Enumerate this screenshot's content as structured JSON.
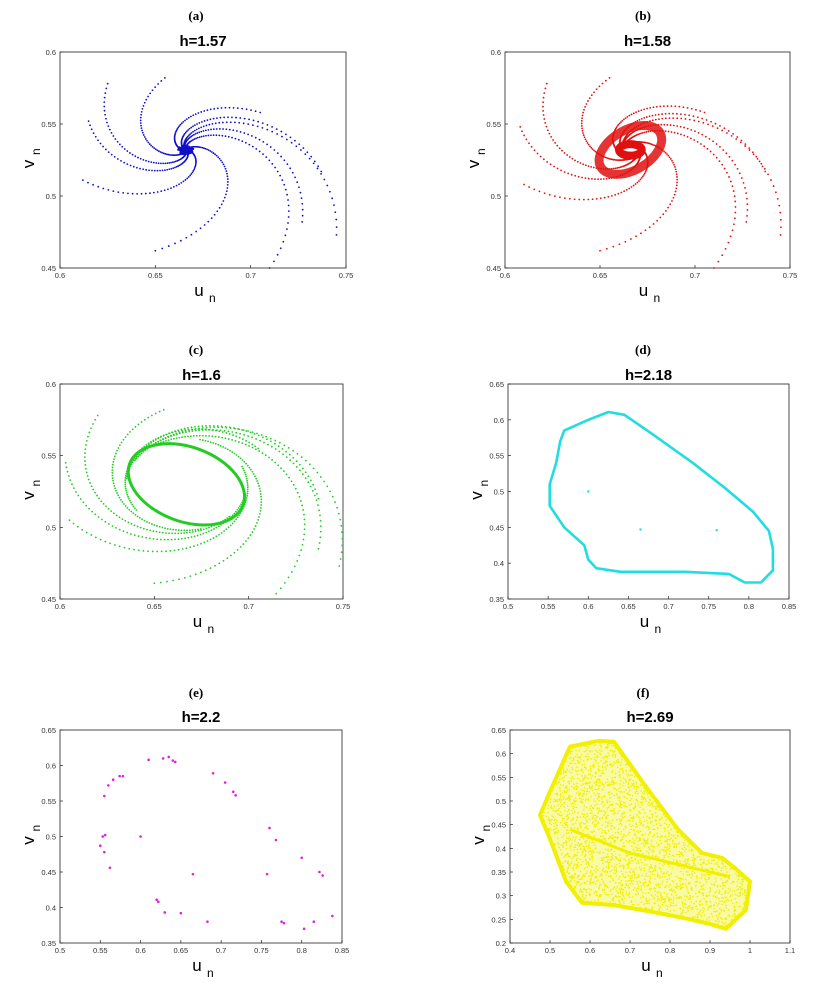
{
  "chart_data": [
    {
      "panel_label": "(a)",
      "title": "h=1.57",
      "type": "scatter",
      "color": "#1010c8",
      "xlim": [
        0.6,
        0.75
      ],
      "ylim": [
        0.45,
        0.6
      ],
      "xticks": [
        "0.6",
        "0.65",
        "0.7",
        "0.75"
      ],
      "yticks": [
        "0.45",
        "0.5",
        "0.55",
        "0.6"
      ],
      "xlabel": "u",
      "xlabel_sub": "n",
      "ylabel": "v",
      "ylabel_sub": "n",
      "pattern": "spiral-arms",
      "fixed_point": [
        0.666,
        0.532
      ],
      "arm_starts": [
        [
          0.625,
          0.578
        ],
        [
          0.655,
          0.582
        ],
        [
          0.705,
          0.558
        ],
        [
          0.737,
          0.517
        ],
        [
          0.745,
          0.473
        ],
        [
          0.71,
          0.45
        ],
        [
          0.65,
          0.462
        ],
        [
          0.612,
          0.511
        ],
        [
          0.615,
          0.552
        ],
        [
          0.727,
          0.482
        ]
      ]
    },
    {
      "panel_label": "(b)",
      "title": "h=1.58",
      "type": "scatter",
      "color": "#e01010",
      "xlim": [
        0.6,
        0.75
      ],
      "ylim": [
        0.45,
        0.6
      ],
      "xticks": [
        "0.6",
        "0.65",
        "0.7",
        "0.75"
      ],
      "yticks": [
        "0.45",
        "0.5",
        "0.55",
        "0.6"
      ],
      "xlabel": "u",
      "xlabel_sub": "n",
      "ylabel": "v",
      "ylabel_sub": "n",
      "pattern": "spiral-to-small-cycle",
      "fixed_point": [
        0.666,
        0.532
      ],
      "cycle_radii": [
        0.006,
        0.004
      ],
      "arm_starts": [
        [
          0.622,
          0.578
        ],
        [
          0.655,
          0.582
        ],
        [
          0.705,
          0.558
        ],
        [
          0.737,
          0.517
        ],
        [
          0.745,
          0.473
        ],
        [
          0.71,
          0.45
        ],
        [
          0.65,
          0.462
        ],
        [
          0.61,
          0.508
        ],
        [
          0.608,
          0.548
        ],
        [
          0.727,
          0.482
        ]
      ]
    },
    {
      "panel_label": "(c)",
      "title": "h=1.6",
      "type": "scatter",
      "color": "#22cc22",
      "xlim": [
        0.6,
        0.75
      ],
      "ylim": [
        0.45,
        0.6
      ],
      "xticks": [
        "0.6",
        "0.65",
        "0.7",
        "0.75"
      ],
      "yticks": [
        "0.45",
        "0.5",
        "0.55",
        "0.6"
      ],
      "xlabel": "u",
      "xlabel_sub": "n",
      "ylabel": "v",
      "ylabel_sub": "n",
      "pattern": "spiral-to-invariant-circle",
      "fixed_point": [
        0.667,
        0.53
      ],
      "cycle_radii": [
        0.032,
        0.026
      ],
      "cycle_tilt_deg": -20,
      "arm_starts": [
        [
          0.62,
          0.578
        ],
        [
          0.655,
          0.582
        ],
        [
          0.705,
          0.555
        ],
        [
          0.737,
          0.52
        ],
        [
          0.748,
          0.473
        ],
        [
          0.712,
          0.45
        ],
        [
          0.65,
          0.461
        ],
        [
          0.605,
          0.505
        ],
        [
          0.603,
          0.545
        ],
        [
          0.737,
          0.485
        ]
      ]
    },
    {
      "panel_label": "(d)",
      "title": "h=2.18",
      "type": "scatter",
      "color": "#22dde0",
      "xlim": [
        0.5,
        0.85
      ],
      "ylim": [
        0.35,
        0.65
      ],
      "xticks": [
        "0.5",
        "0.55",
        "0.6",
        "0.65",
        "0.7",
        "0.75",
        "0.8",
        "0.85"
      ],
      "yticks": [
        "0.35",
        "0.4",
        "0.45",
        "0.5",
        "0.55",
        "0.6",
        "0.65"
      ],
      "xlabel": "u",
      "xlabel_sub": "n",
      "ylabel": "v",
      "ylabel_sub": "n",
      "pattern": "closed-invariant-curve",
      "curve": [
        [
          0.57,
          0.585
        ],
        [
          0.6,
          0.6
        ],
        [
          0.625,
          0.611
        ],
        [
          0.645,
          0.607
        ],
        [
          0.68,
          0.58
        ],
        [
          0.73,
          0.54
        ],
        [
          0.77,
          0.505
        ],
        [
          0.805,
          0.472
        ],
        [
          0.825,
          0.445
        ],
        [
          0.83,
          0.42
        ],
        [
          0.83,
          0.39
        ],
        [
          0.815,
          0.373
        ],
        [
          0.795,
          0.373
        ],
        [
          0.775,
          0.385
        ],
        [
          0.72,
          0.388
        ],
        [
          0.64,
          0.388
        ],
        [
          0.61,
          0.393
        ],
        [
          0.6,
          0.405
        ],
        [
          0.595,
          0.425
        ],
        [
          0.57,
          0.45
        ],
        [
          0.552,
          0.48
        ],
        [
          0.552,
          0.51
        ],
        [
          0.56,
          0.54
        ],
        [
          0.565,
          0.57
        ]
      ],
      "stray_points": [
        [
          0.6,
          0.5
        ],
        [
          0.665,
          0.447
        ],
        [
          0.76,
          0.446
        ]
      ]
    },
    {
      "panel_label": "(e)",
      "title": "h=2.2",
      "type": "scatter",
      "color": "#dd22dd",
      "xlim": [
        0.5,
        0.85
      ],
      "ylim": [
        0.35,
        0.65
      ],
      "xticks": [
        "0.5",
        "0.55",
        "0.6",
        "0.65",
        "0.7",
        "0.75",
        "0.8",
        "0.85"
      ],
      "yticks": [
        "0.35",
        "0.4",
        "0.45",
        "0.5",
        "0.55",
        "0.6",
        "0.65"
      ],
      "xlabel": "u",
      "xlabel_sub": "n",
      "ylabel": "v",
      "ylabel_sub": "n",
      "pattern": "periodic-points",
      "points": [
        [
          0.55,
          0.487
        ],
        [
          0.553,
          0.5
        ],
        [
          0.556,
          0.502
        ],
        [
          0.555,
          0.478
        ],
        [
          0.562,
          0.456
        ],
        [
          0.555,
          0.557
        ],
        [
          0.56,
          0.572
        ],
        [
          0.566,
          0.58
        ],
        [
          0.574,
          0.585
        ],
        [
          0.578,
          0.585
        ],
        [
          0.6,
          0.5
        ],
        [
          0.61,
          0.608
        ],
        [
          0.62,
          0.411
        ],
        [
          0.622,
          0.408
        ],
        [
          0.628,
          0.61
        ],
        [
          0.635,
          0.612
        ],
        [
          0.64,
          0.607
        ],
        [
          0.643,
          0.605
        ],
        [
          0.63,
          0.393
        ],
        [
          0.65,
          0.392
        ],
        [
          0.665,
          0.447
        ],
        [
          0.683,
          0.38
        ],
        [
          0.69,
          0.589
        ],
        [
          0.705,
          0.576
        ],
        [
          0.715,
          0.563
        ],
        [
          0.718,
          0.558
        ],
        [
          0.76,
          0.512
        ],
        [
          0.757,
          0.447
        ],
        [
          0.768,
          0.495
        ],
        [
          0.775,
          0.38
        ],
        [
          0.778,
          0.378
        ],
        [
          0.8,
          0.47
        ],
        [
          0.803,
          0.37
        ],
        [
          0.815,
          0.38
        ],
        [
          0.822,
          0.45
        ],
        [
          0.826,
          0.445
        ],
        [
          0.838,
          0.388
        ]
      ]
    },
    {
      "panel_label": "(f)",
      "title": "h=2.69",
      "type": "scatter",
      "color": "#f0f000",
      "xlim": [
        0.4,
        1.1
      ],
      "ylim": [
        0.2,
        0.65
      ],
      "xticks": [
        "0.4",
        "0.5",
        "0.6",
        "0.7",
        "0.8",
        "0.9",
        "1",
        "1.1"
      ],
      "yticks": [
        "0.2",
        "0.25",
        "0.3",
        "0.35",
        "0.4",
        "0.45",
        "0.5",
        "0.55",
        "0.6",
        "0.65"
      ],
      "xlabel": "u",
      "xlabel_sub": "n",
      "ylabel": "v",
      "ylabel_sub": "n",
      "pattern": "chaotic-attractor",
      "region": [
        [
          0.55,
          0.615
        ],
        [
          0.62,
          0.627
        ],
        [
          0.66,
          0.625
        ],
        [
          0.74,
          0.53
        ],
        [
          0.82,
          0.44
        ],
        [
          0.88,
          0.39
        ],
        [
          0.93,
          0.38
        ],
        [
          0.96,
          0.36
        ],
        [
          1.0,
          0.33
        ],
        [
          0.99,
          0.27
        ],
        [
          0.94,
          0.23
        ],
        [
          0.9,
          0.24
        ],
        [
          0.85,
          0.25
        ],
        [
          0.76,
          0.265
        ],
        [
          0.66,
          0.28
        ],
        [
          0.58,
          0.285
        ],
        [
          0.54,
          0.33
        ],
        [
          0.5,
          0.42
        ],
        [
          0.475,
          0.47
        ],
        [
          0.5,
          0.52
        ]
      ]
    }
  ]
}
